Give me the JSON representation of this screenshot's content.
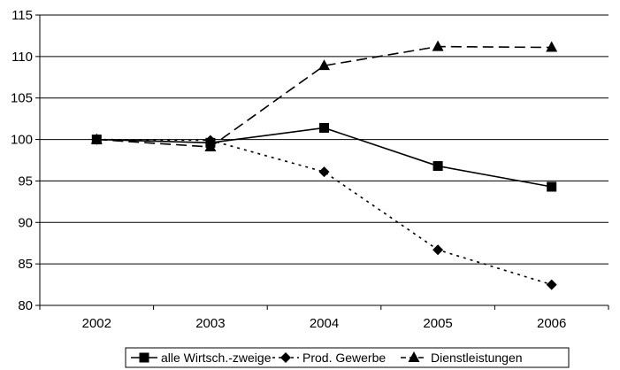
{
  "chart_data": {
    "type": "line",
    "categories": [
      "2002",
      "2003",
      "2004",
      "2005",
      "2006"
    ],
    "yticks": [
      "80",
      "85",
      "90",
      "95",
      "100",
      "105",
      "110",
      "115"
    ],
    "ylim": [
      80,
      115
    ],
    "grid": "horizontal",
    "legend_position": "bottom",
    "series": [
      {
        "name": "alle Wirtsch.-zweige",
        "values": [
          100,
          99.6,
          101.4,
          96.8,
          94.3
        ],
        "marker": "square",
        "dash": "solid",
        "color": "#000000"
      },
      {
        "name": "Prod. Gewerbe",
        "values": [
          100,
          99.9,
          96.1,
          86.7,
          82.5
        ],
        "marker": "diamond",
        "dash": "dotted",
        "color": "#000000"
      },
      {
        "name": "Dienstleistungen",
        "values": [
          100,
          99.1,
          108.9,
          111.2,
          111.1
        ],
        "marker": "triangle",
        "dash": "dashed",
        "color": "#000000"
      }
    ]
  }
}
